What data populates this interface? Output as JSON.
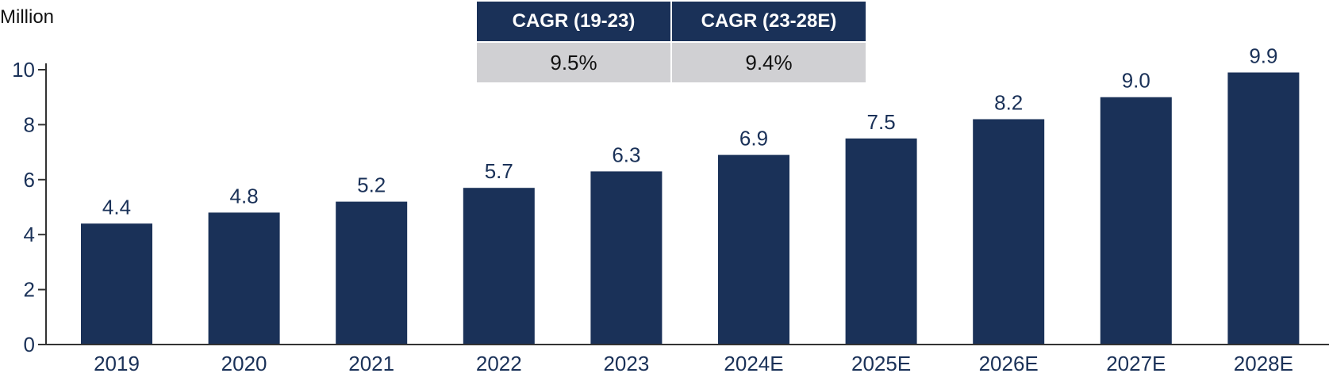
{
  "unit_label": "Million",
  "cagr_table": {
    "headers": [
      "CAGR (19-23)",
      "CAGR (23-28E)"
    ],
    "values": [
      "9.5%",
      "9.4%"
    ]
  },
  "colors": {
    "bar": "#1a3158",
    "table_header": "#1a3158",
    "table_cell": "#d0d0d3",
    "axis": "#333333",
    "text": "#1a3158"
  },
  "chart_data": {
    "type": "bar",
    "categories": [
      "2019",
      "2020",
      "2021",
      "2022",
      "2023",
      "2024E",
      "2025E",
      "2026E",
      "2027E",
      "2028E"
    ],
    "values": [
      4.4,
      4.8,
      5.2,
      5.7,
      6.3,
      6.9,
      7.5,
      8.2,
      9.0,
      9.9
    ],
    "data_labels": [
      "4.4",
      "4.8",
      "5.2",
      "5.7",
      "6.3",
      "6.9",
      "7.5",
      "8.2",
      "9.0",
      "9.9"
    ],
    "title": "",
    "xlabel": "",
    "ylabel": "Million",
    "ylim": [
      0,
      10
    ],
    "yticks": [
      0,
      2,
      4,
      6,
      8,
      10
    ],
    "grid": false,
    "legend": "none"
  }
}
